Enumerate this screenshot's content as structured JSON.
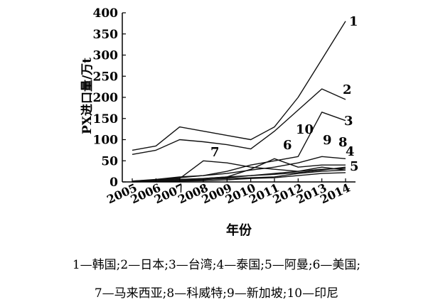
{
  "chart_data": {
    "type": "line",
    "title": "",
    "xlabel": "年份",
    "ylabel": "PX进口量/万t",
    "x": [
      "2005",
      "2006",
      "2007",
      "2008",
      "2009",
      "2010",
      "2011",
      "2012",
      "2013",
      "2014"
    ],
    "ylim": [
      0,
      400
    ],
    "yticks": [
      0,
      50,
      100,
      150,
      200,
      250,
      300,
      350,
      400
    ],
    "grid": false,
    "series": [
      {
        "name": "1",
        "values": [
          75,
          85,
          130,
          120,
          110,
          100,
          130,
          200,
          290,
          380
        ]
      },
      {
        "name": "2",
        "values": [
          65,
          75,
          100,
          95,
          88,
          78,
          120,
          170,
          220,
          195
        ]
      },
      {
        "name": "3",
        "values": [
          2,
          5,
          10,
          15,
          25,
          40,
          50,
          60,
          165,
          145
        ]
      },
      {
        "name": "4",
        "values": [
          2,
          6,
          12,
          15,
          20,
          28,
          35,
          45,
          60,
          55
        ]
      },
      {
        "name": "5",
        "values": [
          1,
          3,
          6,
          8,
          12,
          15,
          20,
          25,
          30,
          32
        ]
      },
      {
        "name": "6",
        "values": [
          1,
          2,
          4,
          6,
          8,
          10,
          12,
          20,
          25,
          28
        ]
      },
      {
        "name": "7",
        "values": [
          1,
          4,
          8,
          50,
          45,
          35,
          30,
          25,
          35,
          28
        ]
      },
      {
        "name": "8",
        "values": [
          1,
          2,
          4,
          5,
          10,
          15,
          18,
          22,
          28,
          35
        ]
      },
      {
        "name": "9",
        "values": [
          1,
          2,
          5,
          8,
          12,
          30,
          55,
          35,
          40,
          40
        ]
      },
      {
        "name": "10",
        "values": [
          0,
          1,
          2,
          3,
          5,
          8,
          10,
          15,
          20,
          22
        ]
      }
    ]
  },
  "legend": {
    "line1": "1—韩国;2—日本;3—台湾;4—泰国;5—阿曼;6—美国;",
    "line2": "7—马来西亚;8—科威特;9—新加坡;10—印尼"
  }
}
